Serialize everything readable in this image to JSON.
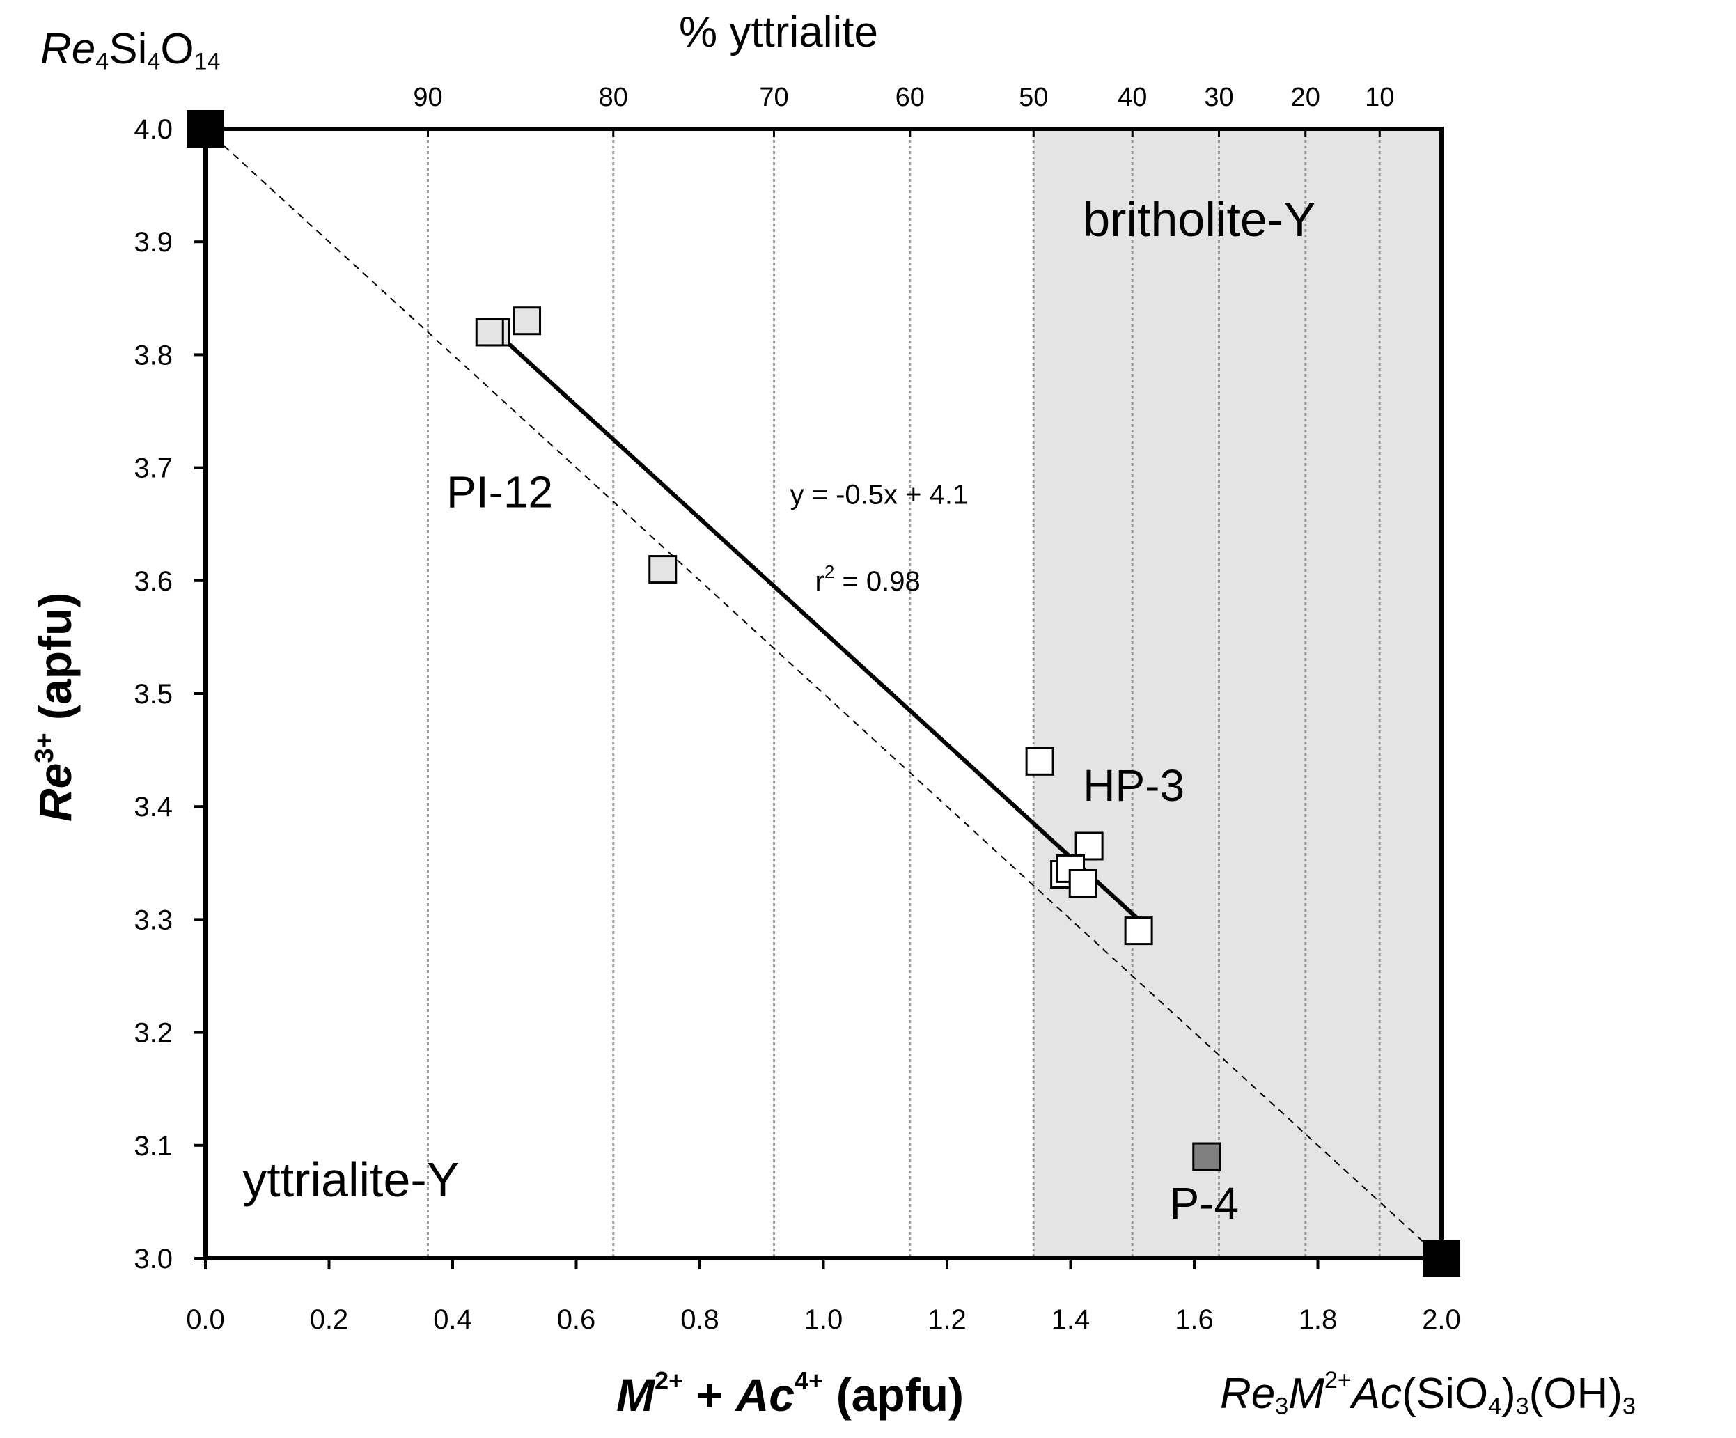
{
  "chart_data": {
    "type": "scatter",
    "title": "",
    "xlabel": {
      "m": "M",
      "m_sup": "2+",
      "plus": " + ",
      "ac": "Ac",
      "ac_sup": "4+",
      "unit": " (apfu)"
    },
    "ylabel": {
      "re": "Re",
      "re_sup": "3+",
      "unit": " (apfu)"
    },
    "top_axis_label": "% yttrialite",
    "xlim": [
      0.0,
      2.0
    ],
    "ylim": [
      3.0,
      4.0
    ],
    "x_ticks": [
      "0.0",
      "0.2",
      "0.4",
      "0.6",
      "0.8",
      "1.0",
      "1.2",
      "1.4",
      "1.6",
      "1.8",
      "2.0"
    ],
    "y_ticks": [
      "3.0",
      "3.1",
      "3.2",
      "3.3",
      "3.4",
      "3.5",
      "3.6",
      "3.7",
      "3.8",
      "3.9",
      "4.0"
    ],
    "top_ticks": [
      {
        "label": "90",
        "x": 0.36
      },
      {
        "label": "80",
        "x": 0.66
      },
      {
        "label": "70",
        "x": 0.92
      },
      {
        "label": "60",
        "x": 1.14
      },
      {
        "label": "50",
        "x": 1.34
      },
      {
        "label": "40",
        "x": 1.5
      },
      {
        "label": "30",
        "x": 1.64
      },
      {
        "label": "20",
        "x": 1.78
      },
      {
        "label": "10",
        "x": 1.9
      }
    ],
    "endmembers": {
      "top_left": {
        "re": "Re",
        "re_sub": "4",
        "si": "Si",
        "si_sub": "4",
        "o": "O",
        "o_sub": "14",
        "x": 0.0,
        "y": 4.0
      },
      "bottom_right": {
        "re": "Re",
        "re_sub": "3",
        "m": "M",
        "m_sup": "2+",
        "ac": "Ac",
        "si": "(SiO",
        "si_sub": "4",
        "close": ")",
        "close_sub": "3",
        "oh": "(OH)",
        "oh_sub": "3",
        "x": 2.0,
        "y": 3.0
      }
    },
    "shaded_region": {
      "label": "britholite-Y",
      "x_range": [
        1.34,
        2.0
      ],
      "color": "#e4e4e4"
    },
    "series": [
      {
        "name": "PI-12",
        "fill": "#e4e4e4",
        "points": [
          [
            0.47,
            3.82
          ],
          [
            0.52,
            3.83
          ],
          [
            0.46,
            3.82
          ],
          [
            0.74,
            3.61
          ]
        ]
      },
      {
        "name": "HP-3",
        "fill": "#ffffff",
        "points": [
          [
            1.35,
            3.44
          ],
          [
            1.43,
            3.365
          ],
          [
            1.39,
            3.34
          ],
          [
            1.4,
            3.345
          ],
          [
            1.42,
            3.332
          ],
          [
            1.51,
            3.29
          ]
        ]
      },
      {
        "name": "P-4",
        "fill": "#808080",
        "points": [
          [
            1.62,
            3.09
          ]
        ]
      }
    ],
    "regression": {
      "x_range": [
        0.48,
        1.51
      ],
      "y_start": 3.815,
      "y_end": 3.3,
      "equation": "y = -0.5x + 4.1",
      "r2_label": "r",
      "r2_sup": "2",
      "r2_value": "  = 0.98"
    },
    "reference_line": {
      "from": [
        0.0,
        4.0
      ],
      "to": [
        2.0,
        3.0
      ],
      "style": "dashed"
    },
    "annotations": [
      {
        "text": "PI-12",
        "x": 0.39,
        "y": 3.665
      },
      {
        "text": "HP-3",
        "x": 1.42,
        "y": 3.405
      },
      {
        "text": "P-4",
        "x": 1.56,
        "y": 3.035
      },
      {
        "text": "yttrialite-Y",
        "x": 0.06,
        "y": 3.055
      },
      {
        "text": "britholite-Y",
        "x": 1.42,
        "y": 3.905
      }
    ]
  }
}
